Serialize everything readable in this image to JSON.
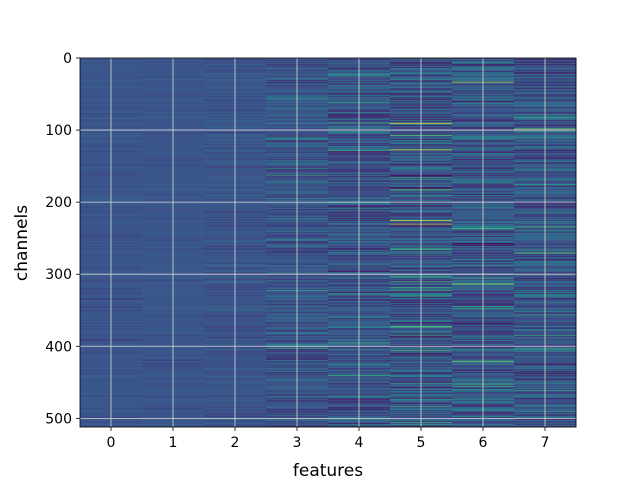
{
  "chart_data": {
    "type": "heatmap",
    "title": "",
    "xlabel": "features",
    "ylabel": "channels",
    "x_categories": [
      "0",
      "1",
      "2",
      "3",
      "4",
      "5",
      "6",
      "7"
    ],
    "y_ticks": [
      0,
      100,
      200,
      300,
      400,
      500
    ],
    "y_tick_labels": [
      "0",
      "100",
      "200",
      "300",
      "400",
      "500"
    ],
    "ylim": [
      512,
      0
    ],
    "n_channels": 512,
    "n_features": 8,
    "grid": true,
    "colormap": "viridis",
    "column_variability": [
      0.12,
      0.12,
      0.22,
      0.42,
      0.55,
      0.68,
      0.62,
      0.58
    ],
    "colors": {
      "grid": "#d9d9d9",
      "colormap_low": "#440154",
      "colormap_mid": "#21918c",
      "colormap_high": "#fde725",
      "background": "#ffffff"
    },
    "highlights": [
      {
        "feature": 5,
        "channel": 90,
        "value": 0.97
      },
      {
        "feature": 5,
        "channel": 127,
        "value": 0.93
      },
      {
        "feature": 5,
        "channel": 182,
        "value": 0.7
      },
      {
        "feature": 5,
        "channel": 225,
        "value": 0.9
      },
      {
        "feature": 5,
        "channel": 230,
        "value": 0.92
      },
      {
        "feature": 5,
        "channel": 372,
        "value": 0.72
      },
      {
        "feature": 6,
        "channel": 33,
        "value": 0.88
      },
      {
        "feature": 6,
        "channel": 313,
        "value": 0.85
      },
      {
        "feature": 6,
        "channel": 421,
        "value": 0.8
      },
      {
        "feature": 6,
        "channel": 455,
        "value": 0.6
      },
      {
        "feature": 7,
        "channel": 98,
        "value": 0.78
      },
      {
        "feature": 7,
        "channel": 270,
        "value": 0.7
      },
      {
        "feature": 7,
        "channel": 385,
        "value": 0.62
      },
      {
        "feature": 4,
        "channel": 128,
        "value": 0.6
      },
      {
        "feature": 4,
        "channel": 327,
        "value": 0.62
      },
      {
        "feature": 4,
        "channel": 440,
        "value": 0.6
      },
      {
        "feature": 3,
        "channel": 162,
        "value": 0.6
      },
      {
        "feature": 3,
        "channel": 322,
        "value": 0.55
      },
      {
        "feature": 3,
        "channel": 402,
        "value": 0.58
      }
    ]
  }
}
